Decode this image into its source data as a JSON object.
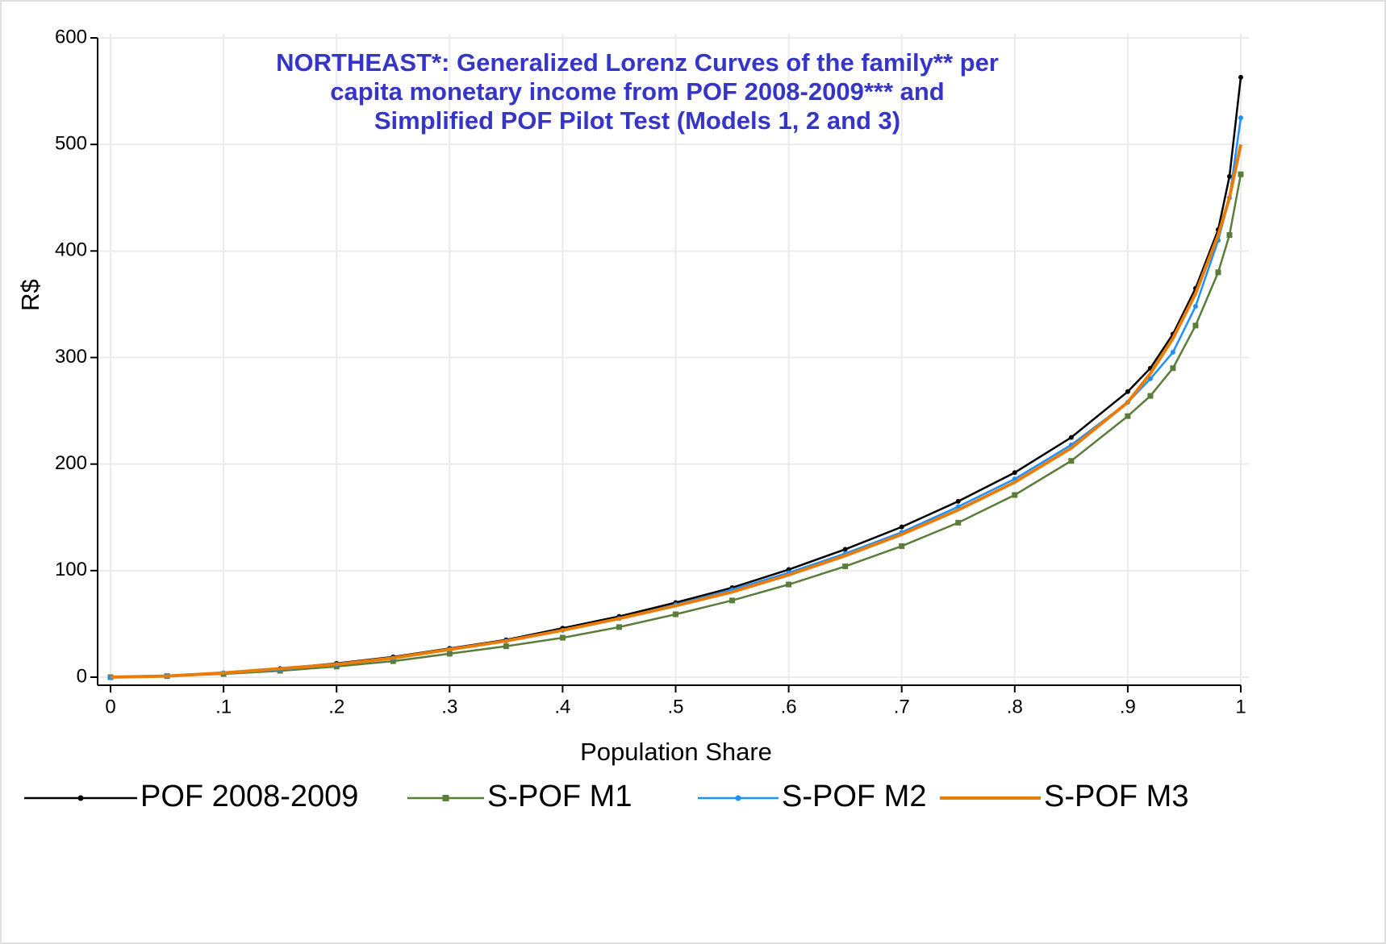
{
  "chart_data": {
    "type": "line",
    "title": [
      "NORTHEAST*: Generalized Lorenz Curves of the family** per",
      "capita monetary income from POF 2008-2009*** and",
      "Simplified POF Pilot Test (Models 1, 2 and 3)"
    ],
    "x_label": "Population Share",
    "y_label": "R$",
    "x": [
      0,
      0.05,
      0.1,
      0.15,
      0.2,
      0.25,
      0.3,
      0.35,
      0.4,
      0.45,
      0.5,
      0.55,
      0.6,
      0.65,
      0.7,
      0.75,
      0.8,
      0.85,
      0.9,
      0.92,
      0.94,
      0.96,
      0.98,
      0.99,
      1
    ],
    "series": [
      {
        "name": "POF 2008-2009",
        "color": "#000000",
        "marker": "circle",
        "values": [
          0,
          1,
          4,
          8,
          13,
          19,
          27,
          35,
          46,
          57,
          70,
          84,
          101,
          120,
          141,
          165,
          192,
          225,
          268,
          290,
          322,
          365,
          420,
          470,
          563
        ]
      },
      {
        "name": "S-POF M1",
        "color": "#5a7d3a",
        "marker": "square",
        "values": [
          0,
          1,
          3,
          6,
          10,
          15,
          22,
          29,
          37,
          47,
          59,
          72,
          87,
          104,
          123,
          145,
          171,
          203,
          245,
          264,
          290,
          330,
          380,
          415,
          472
        ]
      },
      {
        "name": "S-POF M2",
        "color": "#1e90ff",
        "marker": "circle",
        "values": [
          0,
          1,
          4,
          7,
          12,
          18,
          26,
          34,
          44,
          55,
          68,
          82,
          98,
          116,
          136,
          160,
          186,
          218,
          258,
          280,
          305,
          348,
          410,
          450,
          525
        ]
      },
      {
        "name": "S-POF M3",
        "color": "#e87d0c",
        "marker": "none",
        "values": [
          0,
          1,
          4,
          8,
          12,
          18,
          26,
          34,
          44,
          55,
          67,
          80,
          96,
          114,
          134,
          157,
          183,
          215,
          258,
          285,
          318,
          360,
          415,
          450,
          500
        ]
      }
    ],
    "xlim": [
      0,
      1
    ],
    "ylim": [
      0,
      600
    ],
    "xticks": [
      0,
      {
        "value": 0.1,
        "label": ".1"
      },
      {
        "value": 0.2,
        "label": ".2"
      },
      {
        "value": 0.3,
        "label": ".3"
      },
      {
        "value": 0.4,
        "label": ".4"
      },
      {
        "value": 0.5,
        "label": ".5"
      },
      {
        "value": 0.6,
        "label": ".6"
      },
      {
        "value": 0.7,
        "label": ".7"
      },
      {
        "value": 0.8,
        "label": ".8"
      },
      {
        "value": 0.9,
        "label": ".9"
      },
      1
    ],
    "yticks": [
      0,
      100,
      200,
      300,
      400,
      500,
      600
    ],
    "grid": true,
    "legend": "bottom"
  }
}
